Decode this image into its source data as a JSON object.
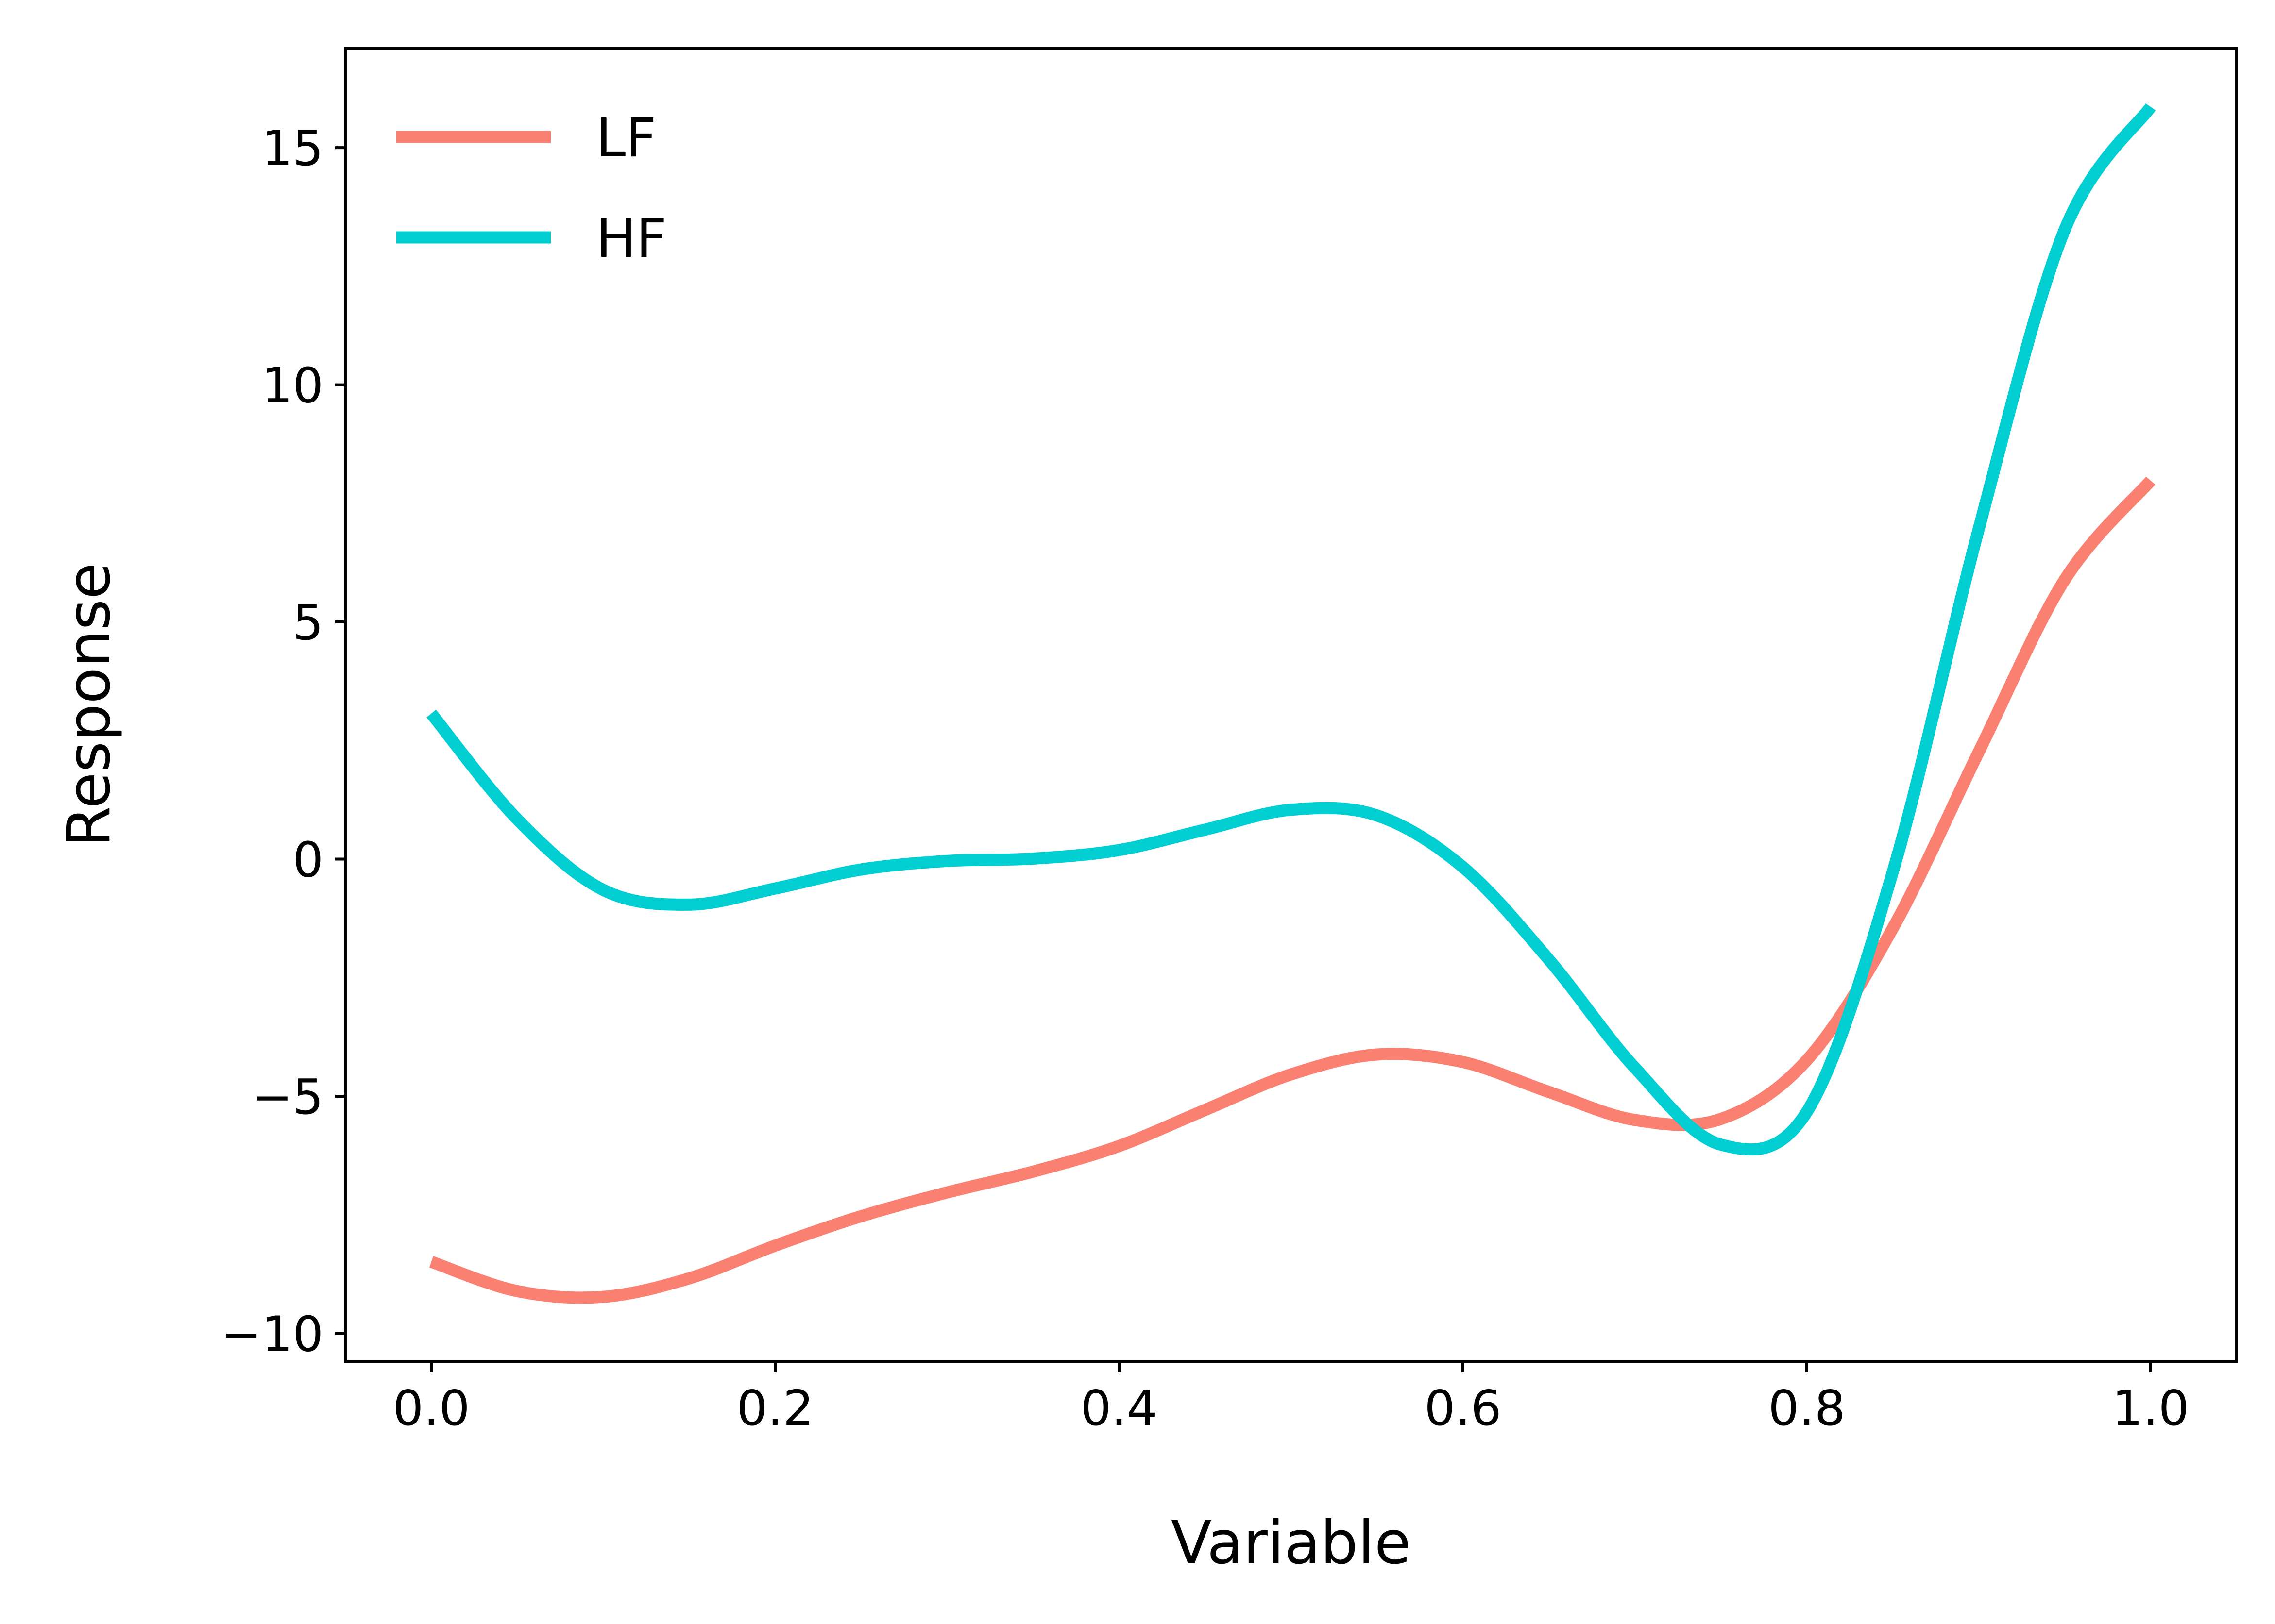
{
  "chart_data": {
    "type": "line",
    "xlabel": "Variable",
    "ylabel": "Response",
    "xlim": [
      -0.05,
      1.05
    ],
    "ylim": [
      -10.6,
      17.1
    ],
    "x_ticks": [
      0.0,
      0.2,
      0.4,
      0.6,
      0.8,
      1.0
    ],
    "x_tick_labels": [
      "0.0",
      "0.2",
      "0.4",
      "0.6",
      "0.8",
      "1.0"
    ],
    "y_ticks": [
      -10,
      -5,
      0,
      5,
      10,
      15
    ],
    "y_tick_labels": [
      "−10",
      "−5",
      "0",
      "5",
      "10",
      "15"
    ],
    "grid": false,
    "legend_position": "top-left",
    "series": [
      {
        "name": "LF",
        "color": "#fa8072",
        "x": [
          0.0,
          0.05,
          0.1,
          0.15,
          0.2,
          0.25,
          0.3,
          0.35,
          0.4,
          0.45,
          0.5,
          0.55,
          0.6,
          0.65,
          0.7,
          0.75,
          0.8,
          0.85,
          0.9,
          0.95,
          1.0
        ],
        "y": [
          -8.49,
          -9.11,
          -9.23,
          -8.84,
          -8.15,
          -7.53,
          -7.03,
          -6.59,
          -6.05,
          -5.29,
          -4.54,
          -4.12,
          -4.28,
          -4.91,
          -5.5,
          -5.48,
          -4.24,
          -1.46,
          2.26,
          5.89,
          7.98
        ]
      },
      {
        "name": "HF",
        "color": "#00ced1",
        "x": [
          0.0,
          0.05,
          0.1,
          0.15,
          0.2,
          0.25,
          0.3,
          0.35,
          0.4,
          0.45,
          0.5,
          0.55,
          0.6,
          0.65,
          0.7,
          0.75,
          0.8,
          0.85,
          0.9,
          0.95,
          1.0
        ],
        "y": [
          3.07,
          0.84,
          -0.65,
          -0.96,
          -0.62,
          -0.22,
          -0.04,
          0.01,
          0.19,
          0.62,
          1.04,
          0.92,
          -0.17,
          -2.12,
          -4.4,
          -6.02,
          -5.33,
          -0.27,
          6.96,
          13.27,
          15.86
        ]
      }
    ]
  }
}
